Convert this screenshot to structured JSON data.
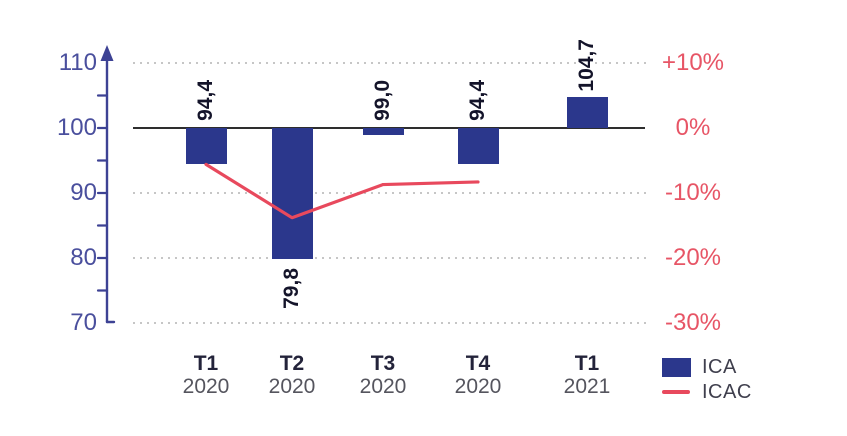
{
  "chart_data": {
    "type": "bar",
    "title": "",
    "categories": [
      "T1 2020",
      "T2 2020",
      "T3 2020",
      "T4 2020",
      "T1 2021"
    ],
    "x_tick_labels": [
      {
        "quarter": "T1",
        "year": "2020"
      },
      {
        "quarter": "T2",
        "year": "2020"
      },
      {
        "quarter": "T3",
        "year": "2020"
      },
      {
        "quarter": "T4",
        "year": "2020"
      },
      {
        "quarter": "T1",
        "year": "2021"
      }
    ],
    "baseline_value": 100,
    "series": [
      {
        "name": "ICA",
        "type": "bar",
        "color": "#2b378c",
        "values": [
          94.4,
          79.8,
          99.0,
          94.4,
          104.7
        ],
        "value_labels": [
          "94,4",
          "79,8",
          "99,0",
          "94,4",
          "104,7"
        ]
      },
      {
        "name": "ICAC",
        "type": "line",
        "color": "#e8495d",
        "x_categories": [
          "T1 2020",
          "T2 2020",
          "T3 2020",
          "T4 2020"
        ],
        "values_percent_approx": [
          -5.6,
          -13.8,
          -8.7,
          -8.3
        ]
      }
    ],
    "left_axis": {
      "tick_labels": [
        "110",
        "100",
        "90",
        "80",
        "70"
      ],
      "tick_values": [
        110,
        100,
        90,
        80,
        70
      ],
      "minor_tick_values": [
        105,
        100,
        95,
        90,
        85,
        80,
        75
      ],
      "range": [
        70,
        112
      ],
      "arrow": "up",
      "color": "#4a4f9d"
    },
    "right_axis": {
      "tick_labels": [
        "+10%",
        "0%",
        "-10%",
        "-20%",
        "-30%"
      ],
      "tick_values": [
        10,
        0,
        -10,
        -20,
        -30
      ],
      "color": "#e75566"
    },
    "grid": {
      "style": "dotted",
      "at_values": [
        110,
        90,
        80,
        70
      ]
    },
    "legend_position": "bottom-right"
  },
  "legend": {
    "ica": "ICA",
    "icac": "ICAC"
  },
  "colors": {
    "bar": "#2b378c",
    "line": "#e8495d",
    "axis": "#3d4294",
    "left_label": "#4a4f9d",
    "right_label": "#e75566",
    "grid_dot": "#c6c6c6",
    "baseline": "#2e2e2e",
    "x_quarter": "#23233a",
    "x_year": "#55555e",
    "value_label": "#14142a"
  }
}
